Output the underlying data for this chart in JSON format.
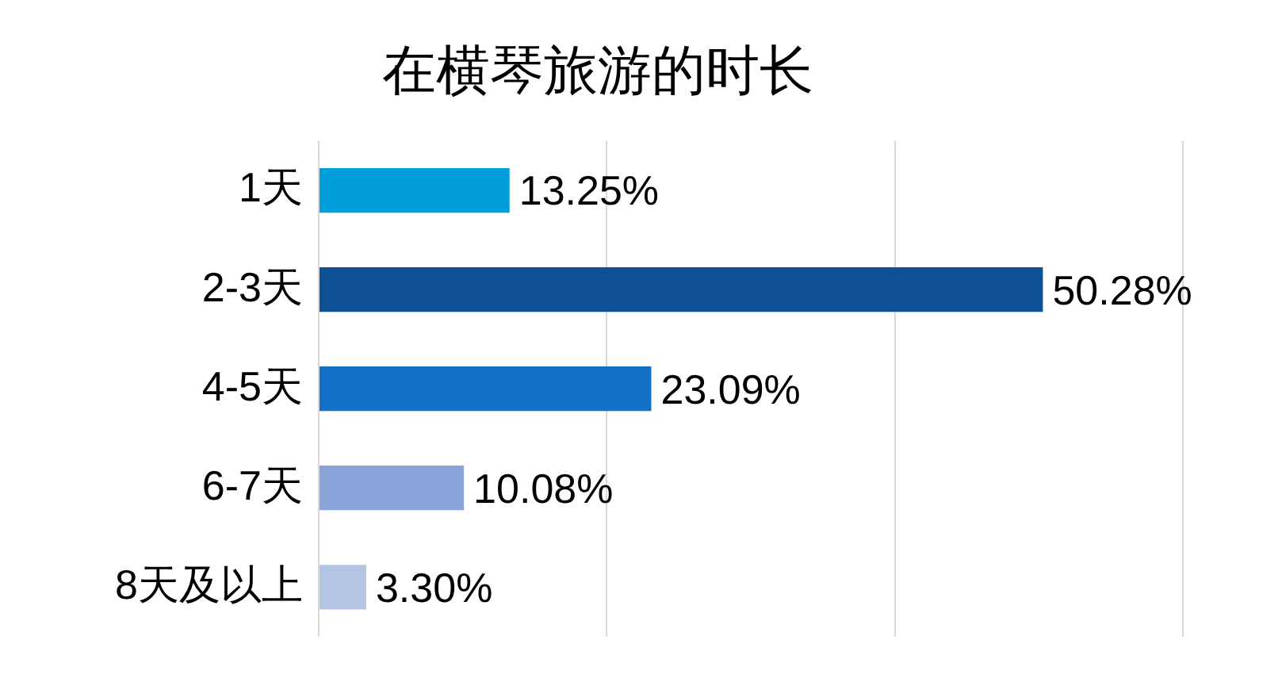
{
  "chart_data": {
    "type": "bar",
    "orientation": "horizontal",
    "title": "在横琴旅游的时长",
    "categories": [
      "1天",
      "2-3天",
      "4-5天",
      "6-7天",
      "8天及以上"
    ],
    "values": [
      13.25,
      50.28,
      23.09,
      10.08,
      3.3
    ],
    "colors": [
      "#009fdb",
      "#0d5194",
      "#1370c6",
      "#8aa3d8",
      "#b3c4e5"
    ],
    "value_labels": [
      "13.25%",
      "50.28%",
      "23.09%",
      "10.08%",
      "3.30%"
    ],
    "xlim": [
      0,
      60
    ],
    "xticks": [
      {
        "value": 0,
        "label": null
      },
      {
        "value": 20,
        "label": null
      },
      {
        "value": 40,
        "label": null
      },
      {
        "value": 60,
        "label": null
      }
    ],
    "grid": "x",
    "tick_labels": "y",
    "legend": false
  }
}
